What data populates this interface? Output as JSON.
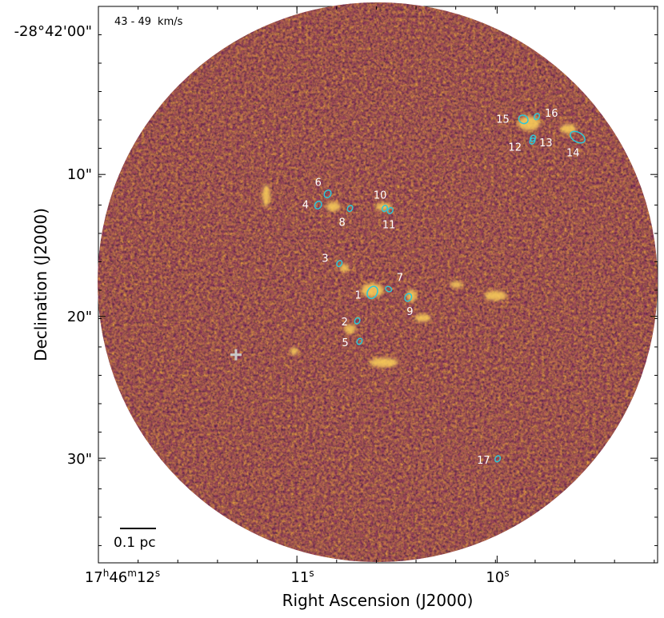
{
  "chart_data": {
    "type": "image",
    "velocity_label": "43 - 49",
    "velocity_unit": "km/s",
    "xlabel": "Right Ascension (J2000)",
    "ylabel": "Declination (J2000)",
    "x_ticks": [
      {
        "h": "17",
        "m": "46",
        "s": "12",
        "frac": 0.0
      },
      {
        "h": "",
        "m": "",
        "s": "11",
        "frac": 0.355
      },
      {
        "h": "",
        "m": "",
        "s": "10",
        "frac": 0.713
      }
    ],
    "y_ticks": [
      {
        "label": "-28°42'00\"",
        "frac": 0.0
      },
      {
        "label": "10\"",
        "frac": 0.302
      },
      {
        "label": "20\"",
        "frac": 0.557
      },
      {
        "label": "30\"",
        "frac": 0.812
      }
    ],
    "scale_bar_label": "0.1 pc",
    "colormap": [
      "#1b0c41",
      "#4a0c6b",
      "#781c6d",
      "#a52c60",
      "#cf4446",
      "#ed6925",
      "#fb9b06",
      "#f7d13d",
      "#fcffa4"
    ],
    "ellipse_color": "#2ec7d8",
    "marker_color": "#c9c9c9",
    "sources": [
      {
        "id": "1",
        "x": 0.49,
        "y": 0.514
      },
      {
        "id": "2",
        "x": 0.463,
        "y": 0.565
      },
      {
        "id": "3",
        "x": 0.431,
        "y": 0.462
      },
      {
        "id": "4",
        "x": 0.393,
        "y": 0.357
      },
      {
        "id": "5",
        "x": 0.467,
        "y": 0.602
      },
      {
        "id": "6",
        "x": 0.41,
        "y": 0.337
      },
      {
        "id": "7",
        "x": 0.519,
        "y": 0.508
      },
      {
        "id": "8",
        "x": 0.45,
        "y": 0.363
      },
      {
        "id": "9",
        "x": 0.554,
        "y": 0.523
      },
      {
        "id": "10",
        "x": 0.512,
        "y": 0.363
      },
      {
        "id": "11",
        "x": 0.522,
        "y": 0.367
      },
      {
        "id": "12",
        "x": 0.776,
        "y": 0.242
      },
      {
        "id": "13",
        "x": 0.777,
        "y": 0.237
      },
      {
        "id": "14",
        "x": 0.857,
        "y": 0.235
      },
      {
        "id": "15",
        "x": 0.76,
        "y": 0.203
      },
      {
        "id": "16",
        "x": 0.784,
        "y": 0.198
      },
      {
        "id": "17",
        "x": 0.714,
        "y": 0.813
      }
    ],
    "marker": {
      "x": 0.246,
      "y": 0.626
    }
  }
}
